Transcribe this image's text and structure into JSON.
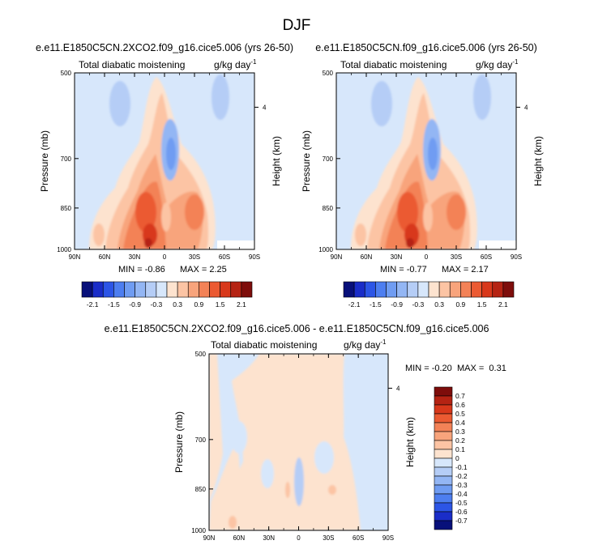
{
  "figure": {
    "title": "DJF"
  },
  "chart_data": [
    {
      "type": "heatmap",
      "title": "e.e11.E1850C5CN.2XCO2.f09_g16.cice5.006 (yrs 26-50)",
      "left_label": "Total diabatic moistening",
      "right_label": "g/kg day",
      "right_label_sup": "-1",
      "xlabel": "",
      "ylabel": "Pressure (mb)",
      "ylabel_right": "Height (km)",
      "x_ticks": [
        "90N",
        "60N",
        "30N",
        "0",
        "30S",
        "60S",
        "90S"
      ],
      "y_ticks": [
        "500",
        "700",
        "850",
        "1000"
      ],
      "y_ticks_right": [
        "4"
      ],
      "ylim": [
        1000,
        500
      ],
      "min_text": "MIN = -0.86",
      "max_text": "MAX = 2.25",
      "colorbar_labels": [
        "-2.1",
        "-1.5",
        "-0.9",
        "-0.3",
        "0.3",
        "0.9",
        "1.5",
        "2.1"
      ],
      "colorbar_levels": [
        -2.1,
        -1.8,
        -1.5,
        -1.2,
        -0.9,
        -0.6,
        -0.3,
        0,
        0.3,
        0.6,
        0.9,
        1.2,
        1.5,
        1.8,
        2.1
      ],
      "colors": [
        "#08107a",
        "#1a2dc8",
        "#2c55e6",
        "#4d7ef0",
        "#6f9cf2",
        "#93b6f4",
        "#b5cdf6",
        "#d7e7fb",
        "#fde3cf",
        "#fcc4a4",
        "#f8a47c",
        "#f38257",
        "#eb5a32",
        "#d8381b",
        "#b52313",
        "#7e0d0b"
      ]
    },
    {
      "type": "heatmap",
      "title": "e.e11.E1850C5CN.f09_g16.cice5.006 (yrs 26-50)",
      "left_label": "Total diabatic moistening",
      "right_label": "g/kg day",
      "right_label_sup": "-1",
      "xlabel": "",
      "ylabel": "Pressure (mb)",
      "ylabel_right": "Height (km)",
      "x_ticks": [
        "90N",
        "60N",
        "30N",
        "0",
        "30S",
        "60S",
        "90S"
      ],
      "y_ticks": [
        "500",
        "700",
        "850",
        "1000"
      ],
      "y_ticks_right": [
        "4"
      ],
      "ylim": [
        1000,
        500
      ],
      "min_text": "MIN = -0.77",
      "max_text": "MAX = 2.17",
      "colorbar_labels": [
        "-2.1",
        "-1.5",
        "-0.9",
        "-0.3",
        "0.3",
        "0.9",
        "1.5",
        "2.1"
      ],
      "colorbar_levels": [
        -2.1,
        -1.8,
        -1.5,
        -1.2,
        -0.9,
        -0.6,
        -0.3,
        0,
        0.3,
        0.6,
        0.9,
        1.2,
        1.5,
        1.8,
        2.1
      ],
      "colors": [
        "#08107a",
        "#1a2dc8",
        "#2c55e6",
        "#4d7ef0",
        "#6f9cf2",
        "#93b6f4",
        "#b5cdf6",
        "#d7e7fb",
        "#fde3cf",
        "#fcc4a4",
        "#f8a47c",
        "#f38257",
        "#eb5a32",
        "#d8381b",
        "#b52313",
        "#7e0d0b"
      ]
    },
    {
      "type": "heatmap",
      "title": "e.e11.E1850C5CN.2XCO2.f09_g16.cice5.006 - e.e11.E1850C5CN.f09_g16.cice5.006",
      "left_label": "Total diabatic moistening",
      "right_label": "g/kg day",
      "right_label_sup": "-1",
      "xlabel": "",
      "ylabel": "Pressure (mb)",
      "ylabel_right": "Height (km)",
      "x_ticks": [
        "90N",
        "60N",
        "30N",
        "0",
        "30S",
        "60S",
        "90S"
      ],
      "y_ticks": [
        "500",
        "700",
        "850",
        "1000"
      ],
      "y_ticks_right": [
        "4"
      ],
      "ylim": [
        1000,
        500
      ],
      "min_text": "MIN = -0.20",
      "max_text": "MAX =  0.31",
      "colorbar_labels": [
        "0.7",
        "0.6",
        "0.5",
        "0.4",
        "0.3",
        "0.2",
        "0.1",
        "0",
        "-0.1",
        "-0.2",
        "-0.3",
        "-0.4",
        "-0.5",
        "-0.6",
        "-0.7"
      ],
      "colorbar_levels": [
        0.7,
        0.6,
        0.5,
        0.4,
        0.3,
        0.2,
        0.1,
        0,
        -0.1,
        -0.2,
        -0.3,
        -0.4,
        -0.5,
        -0.6,
        -0.7
      ],
      "colors": [
        "#7e0d0b",
        "#b52313",
        "#d8381b",
        "#eb5a32",
        "#f38257",
        "#f8a47c",
        "#fcc4a4",
        "#fde3cf",
        "#d7e7fb",
        "#b5cdf6",
        "#93b6f4",
        "#6f9cf2",
        "#4d7ef0",
        "#2c55e6",
        "#1a2dc8",
        "#08107a"
      ]
    }
  ]
}
